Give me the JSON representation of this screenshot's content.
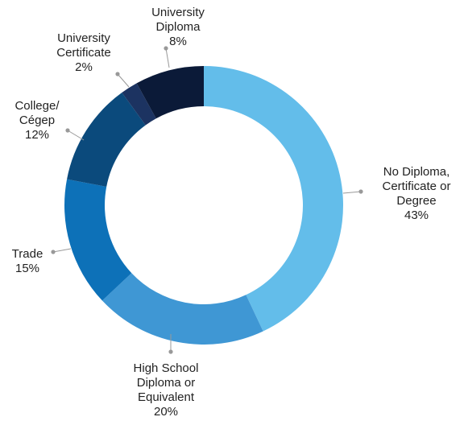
{
  "chart_data": {
    "type": "pie",
    "style": "donut",
    "title": "",
    "slices": [
      {
        "label_lines": [
          "No Diploma,",
          "Certificate or",
          "Degree"
        ],
        "pct_label": "43%",
        "value": 43,
        "color": "#63bdea"
      },
      {
        "label_lines": [
          "High School",
          "Diploma or",
          "Equivalent"
        ],
        "pct_label": "20%",
        "value": 20,
        "color": "#3f97d4"
      },
      {
        "label_lines": [
          "Trade"
        ],
        "pct_label": "15%",
        "value": 15,
        "color": "#0d71b8"
      },
      {
        "label_lines": [
          "College/",
          "Cégep"
        ],
        "pct_label": "12%",
        "value": 12,
        "color": "#0b4a7c"
      },
      {
        "label_lines": [
          "University",
          "Certificate"
        ],
        "pct_label": "2%",
        "value": 2,
        "color": "#1c3361"
      },
      {
        "label_lines": [
          "University",
          "Diploma"
        ],
        "pct_label": "8%",
        "value": 8,
        "color": "#0b1a38"
      }
    ],
    "leader_color": "#999999"
  }
}
